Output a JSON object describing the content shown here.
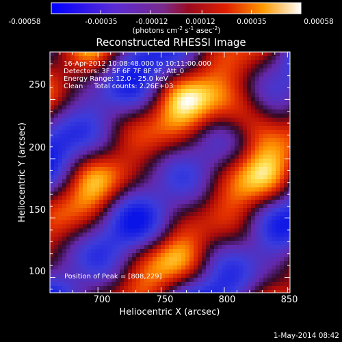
{
  "chart_data": {
    "type": "heatmap",
    "title": "Reconstructed RHESSI Image",
    "xlabel": "Heliocentric X (arcsec)",
    "ylabel": "Heliocentric Y (arcsec)",
    "xlim": [
      662,
      852
    ],
    "ylim": [
      87,
      290
    ],
    "x_ticks": [
      "700",
      "750",
      "800",
      "850"
    ],
    "x_tick_values": [
      700,
      750,
      800,
      850
    ],
    "y_ticks": [
      "100",
      "150",
      "200",
      "250"
    ],
    "y_tick_values": [
      100,
      150,
      200,
      250
    ],
    "colorbar": {
      "ticks": [
        "-0.00058",
        "-0.00035",
        "-0.00012",
        "0.00012",
        "0.00035",
        "0.00058"
      ],
      "tick_values": [
        -0.00058,
        -0.00035,
        -0.00012,
        0.00012,
        0.00035,
        0.00058
      ],
      "range": [
        -0.00058,
        0.00058
      ],
      "units_main": "(photons cm",
      "units_sup1": "-2",
      "units_mid": " s",
      "units_sup2": "-1",
      "units_end": " asec",
      "units_sup3": "-2",
      "units_close": ")"
    },
    "annotations": [
      "16-Apr-2012 10:08:48.000 to 10:11:00.000",
      "Detectors: 3F 5F 6F 7F 8F 9F, Att_0",
      "Energy Range: 12.0 - 25.0 keV",
      "Clean     Total counts: 2.26E+03"
    ],
    "peak_label": "Position of Peak = [808,229]",
    "peak": [
      808,
      229
    ],
    "colors": {
      "background": "#000000",
      "blue_low": "#1a1aff",
      "purple_mid": "#6a1fa8",
      "red": "#d41a00",
      "orange": "#ff8c00",
      "yellow": "#ffd84a",
      "white_high": "#ffffff"
    }
  },
  "footer": {
    "timestamp": "1-May-2014 08:42"
  }
}
